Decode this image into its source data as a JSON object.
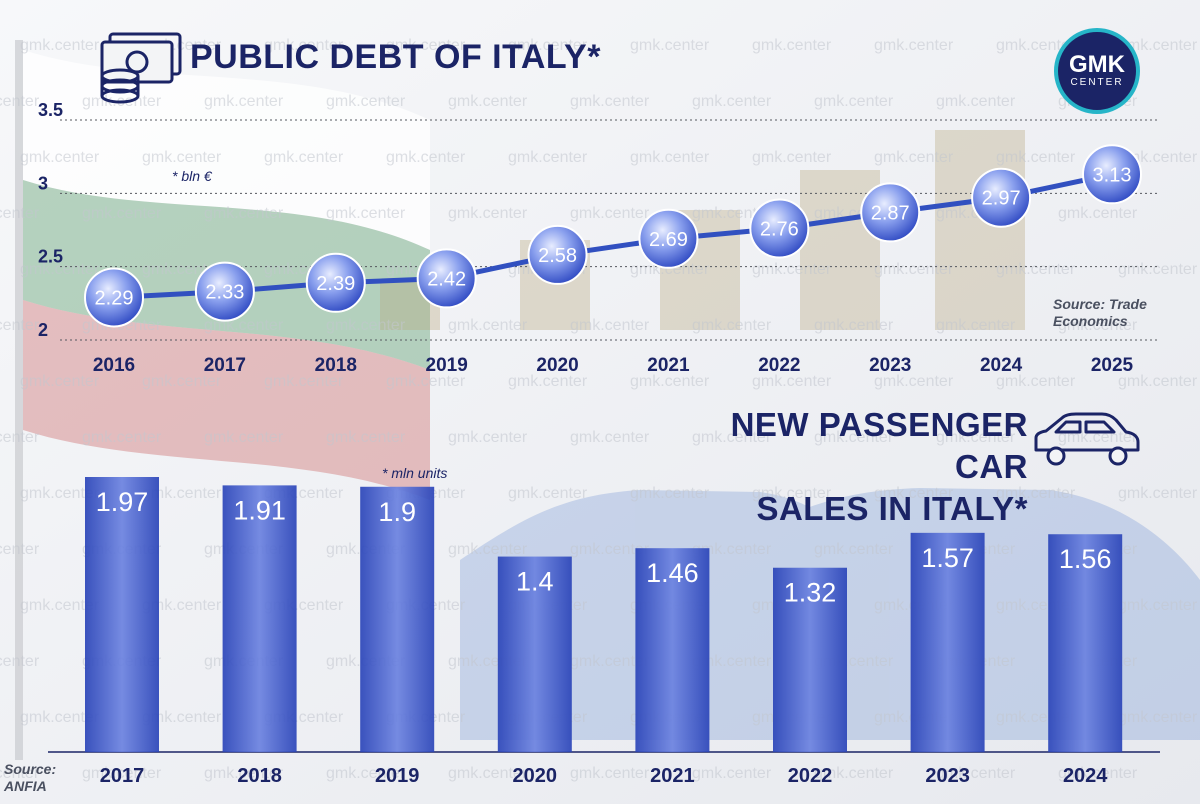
{
  "watermark": "gmk.center",
  "logo": {
    "line1": "GMK",
    "line2": "CENTER"
  },
  "debt": {
    "title": "PUBLIC DEBT OF ITALY*",
    "unit_note": "* bln €",
    "source": "Source: Trade Economics"
  },
  "cars": {
    "title_line1": "NEW PASSENGER CAR",
    "title_line2": "SALES IN ITALY*",
    "unit_note": "* mln units",
    "source": "Source: ANFIA"
  },
  "icons": {
    "debt": "money-stack-icon",
    "cars": "car-icon"
  },
  "colors": {
    "navy": "#1b2466",
    "bar_blue": "#2f4bc4",
    "bubble_blue": "#3550c8",
    "line_blue": "#3150c0"
  },
  "chart_data": [
    {
      "type": "line",
      "title": "PUBLIC DEBT OF ITALY*",
      "ylabel": "bln €",
      "ylim": [
        2,
        3.5
      ],
      "yticks": [
        2,
        2.5,
        3,
        3.5
      ],
      "ytick_labels": [
        "2",
        "2.5",
        "3",
        "3.5"
      ],
      "categories": [
        "2016",
        "2017",
        "2018",
        "2019",
        "2020",
        "2021",
        "2022",
        "2023",
        "2024",
        "2025"
      ],
      "values": [
        2.29,
        2.33,
        2.39,
        2.42,
        2.58,
        2.69,
        2.76,
        2.87,
        2.97,
        3.13
      ],
      "grid": true
    },
    {
      "type": "bar",
      "title": "NEW PASSENGER CAR SALES IN ITALY*",
      "ylabel": "mln units",
      "categories": [
        "2017",
        "2018",
        "2019",
        "2020",
        "2021",
        "2022",
        "2023",
        "2024"
      ],
      "values": [
        1.97,
        1.91,
        1.9,
        1.4,
        1.46,
        1.32,
        1.57,
        1.56
      ]
    }
  ]
}
